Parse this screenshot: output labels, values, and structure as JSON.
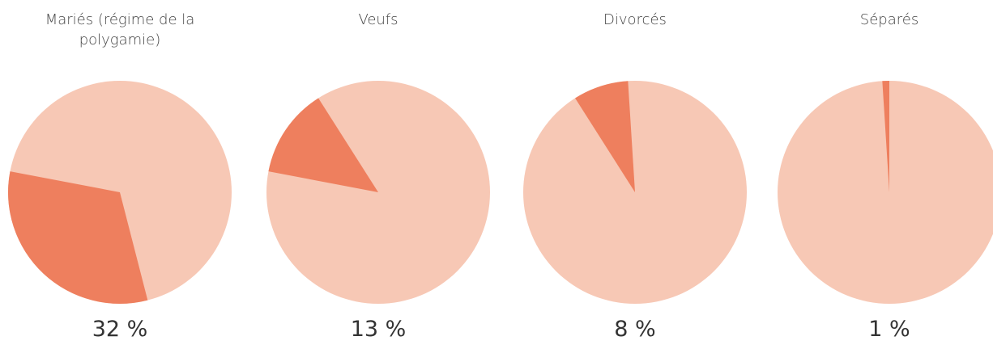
{
  "chart_data": [
    {
      "type": "pie",
      "title": "Mariés (régime de la polygamie)",
      "values": [
        32
      ],
      "value_labels": [
        "32 %"
      ],
      "color": "#ee7f5e",
      "base_color": "#f7c8b5"
    },
    {
      "type": "pie",
      "title": "Veufs",
      "values": [
        13
      ],
      "value_labels": [
        "13 %"
      ],
      "color": "#ee7f5e",
      "base_color": "#f7c8b5"
    },
    {
      "type": "pie",
      "title": "Divorcés",
      "values": [
        8
      ],
      "value_labels": [
        "8 %"
      ],
      "color": "#ee7f5e",
      "base_color": "#f7c8b5"
    },
    {
      "type": "pie",
      "title": "Séparés",
      "values": [
        1
      ],
      "value_labels": [
        "1 %"
      ],
      "color": "#ee7f5e",
      "base_color": "#f7c8b5"
    }
  ]
}
